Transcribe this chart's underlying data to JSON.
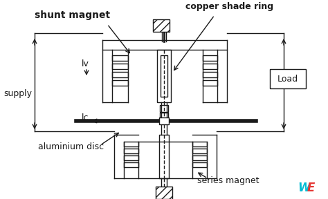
{
  "bg_color": "#ffffff",
  "line_color": "#1a1a1a",
  "labels": {
    "shunt_magnet": "shunt magnet",
    "copper_shade_ring": "copper shade ring",
    "supply": "supply",
    "lv": "lv",
    "lc": "lc",
    "aluminium_disc": "aluminium disc",
    "series_magnet": "series magnet",
    "load": "Load"
  },
  "watermark_W": "#00bcd4",
  "watermark_E": "#e53935",
  "figsize": [
    4.74,
    2.88
  ],
  "dpi": 100
}
